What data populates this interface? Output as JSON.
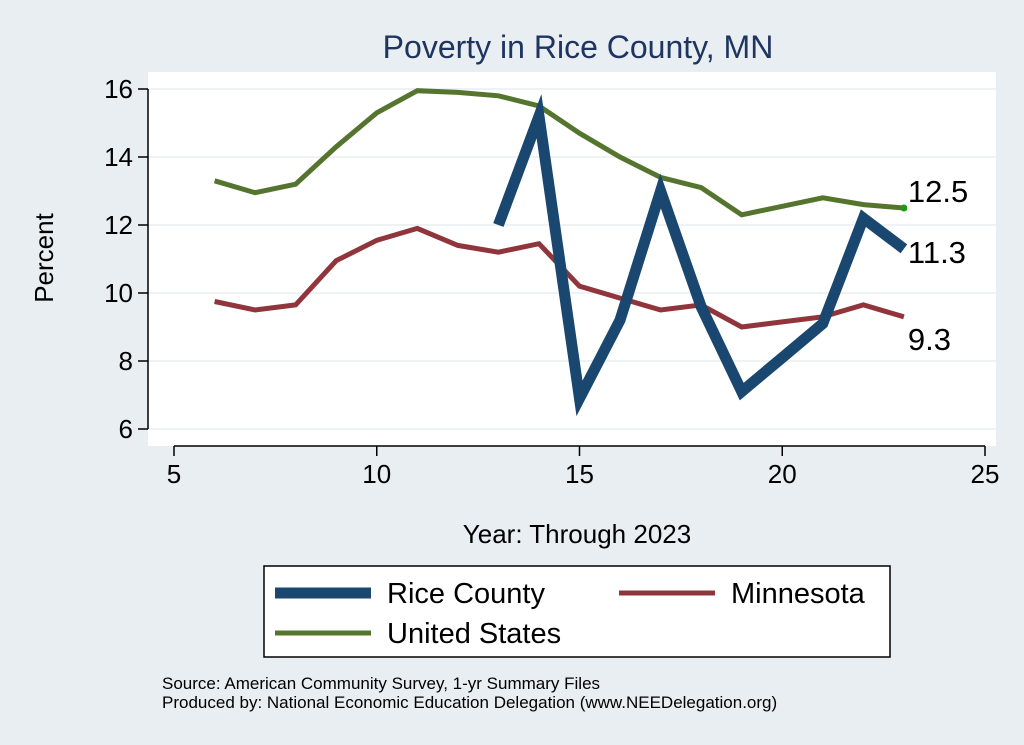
{
  "chart_data": {
    "type": "line",
    "title": "Poverty in Rice County, MN",
    "xlabel": "Year: Through 2023",
    "ylabel": "Percent",
    "xlim": [
      5,
      25
    ],
    "ylim": [
      5.5,
      16.5
    ],
    "xticks": [
      5,
      10,
      15,
      20,
      25
    ],
    "yticks": [
      6,
      8,
      10,
      12,
      14,
      16
    ],
    "grid": "horizontal",
    "legend_position": "bottom",
    "series": [
      {
        "name": "Rice County",
        "color": "#1a476f",
        "points": [
          [
            13,
            12.0
          ],
          [
            14,
            15.2
          ],
          [
            15,
            6.9
          ],
          [
            16,
            9.2
          ],
          [
            17,
            13.0
          ],
          [
            18,
            9.6
          ],
          [
            19,
            7.1
          ],
          [
            20,
            8.1
          ],
          [
            21,
            9.1
          ],
          [
            22,
            12.2
          ],
          [
            23,
            11.3
          ]
        ],
        "end_label": "11.3"
      },
      {
        "name": "Minnesota",
        "color": "#90353b",
        "points": [
          [
            6,
            9.75
          ],
          [
            7,
            9.5
          ],
          [
            8,
            9.65
          ],
          [
            9,
            10.95
          ],
          [
            10,
            11.55
          ],
          [
            11,
            11.9
          ],
          [
            12,
            11.4
          ],
          [
            13,
            11.2
          ],
          [
            14,
            11.45
          ],
          [
            15,
            10.2
          ],
          [
            16,
            9.85
          ],
          [
            17,
            9.5
          ],
          [
            18,
            9.65
          ],
          [
            19,
            9.0
          ],
          [
            20,
            9.15
          ],
          [
            21,
            9.3
          ],
          [
            22,
            9.65
          ],
          [
            23,
            9.3
          ]
        ],
        "end_label": "9.3"
      },
      {
        "name": "United States",
        "color": "#55752f",
        "points": [
          [
            6,
            13.3
          ],
          [
            7,
            12.95
          ],
          [
            8,
            13.2
          ],
          [
            9,
            14.3
          ],
          [
            10,
            15.3
          ],
          [
            11,
            15.95
          ],
          [
            12,
            15.9
          ],
          [
            13,
            15.8
          ],
          [
            14,
            15.5
          ],
          [
            15,
            14.7
          ],
          [
            16,
            14.0
          ],
          [
            17,
            13.4
          ],
          [
            18,
            13.1
          ],
          [
            19,
            12.3
          ],
          [
            20,
            12.55
          ],
          [
            21,
            12.8
          ],
          [
            22,
            12.6
          ],
          [
            23,
            12.5
          ]
        ],
        "end_label": "12.5"
      }
    ],
    "source_note": "Source: American Community Survey, 1-yr Summary Files",
    "producer_note": "Produced by: National Economic Education Delegation (www.NEEDelegation.org)"
  }
}
